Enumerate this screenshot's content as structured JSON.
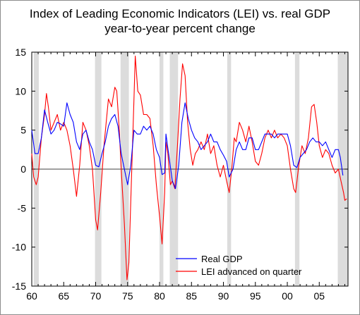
{
  "chart_data": {
    "type": "line",
    "title": "Index of Leading Economic Indicators (LEI) vs. real GDP",
    "subtitle": "year-to-year percent change",
    "xlabel": "",
    "ylabel": "",
    "xlim": [
      1960,
      2009.5
    ],
    "ylim": [
      -15,
      15
    ],
    "y_ticks": [
      15,
      10,
      5,
      0,
      -5,
      -10,
      -15
    ],
    "x_ticks": [
      {
        "year": 1960,
        "label": "60"
      },
      {
        "year": 1965,
        "label": "65"
      },
      {
        "year": 1970,
        "label": "70"
      },
      {
        "year": 1975,
        "label": "75"
      },
      {
        "year": 1980,
        "label": "80"
      },
      {
        "year": 1985,
        "label": "85"
      },
      {
        "year": 1990,
        "label": "90"
      },
      {
        "year": 1995,
        "label": "95"
      },
      {
        "year": 2000,
        "label": "00"
      },
      {
        "year": 2005,
        "label": "05"
      }
    ],
    "grid": false,
    "legend_position": "bottom-center",
    "recessions": [
      [
        1960.3,
        1961.1
      ],
      [
        1969.9,
        1970.9
      ],
      [
        1973.9,
        1975.2
      ],
      [
        1980.0,
        1980.6
      ],
      [
        1981.6,
        1982.9
      ],
      [
        1990.6,
        1991.2
      ],
      [
        2001.2,
        2001.9
      ],
      [
        2007.9,
        2009.5
      ]
    ],
    "series": [
      {
        "name": "Real GDP",
        "color": "#0000ff",
        "points": [
          [
            1960.0,
            5.0
          ],
          [
            1960.5,
            2.0
          ],
          [
            1961.0,
            2.0
          ],
          [
            1961.5,
            4.0
          ],
          [
            1962.0,
            7.6
          ],
          [
            1962.5,
            6.0
          ],
          [
            1963.0,
            4.5
          ],
          [
            1963.5,
            5.0
          ],
          [
            1964.0,
            6.0
          ],
          [
            1964.5,
            5.8
          ],
          [
            1965.0,
            5.5
          ],
          [
            1965.5,
            8.5
          ],
          [
            1966.0,
            7.0
          ],
          [
            1966.5,
            6.0
          ],
          [
            1967.0,
            3.5
          ],
          [
            1967.5,
            2.5
          ],
          [
            1968.0,
            4.5
          ],
          [
            1968.5,
            5.0
          ],
          [
            1969.0,
            3.5
          ],
          [
            1969.5,
            2.5
          ],
          [
            1970.0,
            0.5
          ],
          [
            1970.5,
            0.3
          ],
          [
            1971.0,
            2.0
          ],
          [
            1971.5,
            3.5
          ],
          [
            1972.0,
            5.5
          ],
          [
            1972.5,
            6.5
          ],
          [
            1973.0,
            7.0
          ],
          [
            1973.5,
            5.5
          ],
          [
            1974.0,
            2.0
          ],
          [
            1974.5,
            0.0
          ],
          [
            1975.0,
            -2.0
          ],
          [
            1975.5,
            0.5
          ],
          [
            1976.0,
            5.0
          ],
          [
            1976.5,
            4.5
          ],
          [
            1977.0,
            4.5
          ],
          [
            1977.5,
            5.5
          ],
          [
            1978.0,
            5.0
          ],
          [
            1978.5,
            5.5
          ],
          [
            1979.0,
            4.5
          ],
          [
            1979.5,
            2.5
          ],
          [
            1980.0,
            1.5
          ],
          [
            1980.4,
            -0.7
          ],
          [
            1980.8,
            -0.5
          ],
          [
            1981.0,
            4.5
          ],
          [
            1981.5,
            1.5
          ],
          [
            1982.0,
            -1.5
          ],
          [
            1982.5,
            -2.5
          ],
          [
            1983.0,
            0.5
          ],
          [
            1983.5,
            6.0
          ],
          [
            1984.0,
            8.5
          ],
          [
            1984.5,
            6.5
          ],
          [
            1985.0,
            5.0
          ],
          [
            1985.5,
            4.0
          ],
          [
            1986.0,
            3.5
          ],
          [
            1986.5,
            2.5
          ],
          [
            1987.0,
            3.0
          ],
          [
            1987.5,
            3.5
          ],
          [
            1988.0,
            4.5
          ],
          [
            1988.5,
            3.5
          ],
          [
            1989.0,
            3.5
          ],
          [
            1989.5,
            2.5
          ],
          [
            1990.0,
            1.8
          ],
          [
            1990.5,
            1.0
          ],
          [
            1990.9,
            -1.0
          ],
          [
            1991.5,
            0.0
          ],
          [
            1992.0,
            2.5
          ],
          [
            1992.5,
            3.5
          ],
          [
            1993.0,
            2.5
          ],
          [
            1993.5,
            2.5
          ],
          [
            1994.0,
            4.0
          ],
          [
            1994.5,
            4.0
          ],
          [
            1995.0,
            2.5
          ],
          [
            1995.5,
            2.5
          ],
          [
            1996.0,
            3.5
          ],
          [
            1996.5,
            4.5
          ],
          [
            1997.0,
            4.5
          ],
          [
            1997.5,
            4.5
          ],
          [
            1998.0,
            4.0
          ],
          [
            1998.5,
            4.5
          ],
          [
            1999.0,
            4.5
          ],
          [
            1999.5,
            4.5
          ],
          [
            2000.0,
            4.5
          ],
          [
            2000.5,
            3.0
          ],
          [
            2001.0,
            0.5
          ],
          [
            2001.5,
            0.2
          ],
          [
            2002.0,
            1.5
          ],
          [
            2002.5,
            2.0
          ],
          [
            2003.0,
            2.5
          ],
          [
            2003.5,
            3.5
          ],
          [
            2004.0,
            4.0
          ],
          [
            2004.5,
            3.5
          ],
          [
            2005.0,
            3.5
          ],
          [
            2005.5,
            3.0
          ],
          [
            2006.0,
            3.5
          ],
          [
            2006.5,
            2.5
          ],
          [
            2007.0,
            1.5
          ],
          [
            2007.5,
            2.5
          ],
          [
            2008.0,
            2.5
          ],
          [
            2008.3,
            1.5
          ],
          [
            2008.7,
            -0.8
          ]
        ]
      },
      {
        "name": "LEI advanced on quarter",
        "color": "#ff0000",
        "points": [
          [
            1960.0,
            2.0
          ],
          [
            1960.3,
            -1.0
          ],
          [
            1960.7,
            -2.0
          ],
          [
            1961.0,
            -1.0
          ],
          [
            1961.5,
            4.0
          ],
          [
            1962.0,
            7.0
          ],
          [
            1962.3,
            9.7
          ],
          [
            1962.6,
            8.0
          ],
          [
            1963.0,
            5.0
          ],
          [
            1963.5,
            6.0
          ],
          [
            1964.0,
            7.0
          ],
          [
            1964.5,
            5.0
          ],
          [
            1965.0,
            6.0
          ],
          [
            1965.5,
            5.0
          ],
          [
            1966.0,
            3.0
          ],
          [
            1966.5,
            0.0
          ],
          [
            1967.0,
            -3.5
          ],
          [
            1967.5,
            0.5
          ],
          [
            1968.0,
            6.0
          ],
          [
            1968.5,
            5.0
          ],
          [
            1969.0,
            3.0
          ],
          [
            1969.5,
            0.0
          ],
          [
            1970.0,
            -6.5
          ],
          [
            1970.3,
            -7.8
          ],
          [
            1970.8,
            -3.0
          ],
          [
            1971.3,
            3.0
          ],
          [
            1972.0,
            9.0
          ],
          [
            1972.5,
            8.0
          ],
          [
            1973.0,
            10.5
          ],
          [
            1973.3,
            10.0
          ],
          [
            1973.7,
            5.0
          ],
          [
            1974.0,
            0.0
          ],
          [
            1974.5,
            -7.0
          ],
          [
            1974.9,
            -14.2
          ],
          [
            1975.2,
            -12.0
          ],
          [
            1975.5,
            -4.0
          ],
          [
            1976.0,
            9.0
          ],
          [
            1976.2,
            14.5
          ],
          [
            1976.6,
            10.0
          ],
          [
            1977.0,
            9.5
          ],
          [
            1977.5,
            7.0
          ],
          [
            1978.0,
            7.0
          ],
          [
            1978.5,
            6.5
          ],
          [
            1979.0,
            3.0
          ],
          [
            1979.5,
            -2.0
          ],
          [
            1980.0,
            -6.0
          ],
          [
            1980.4,
            -9.6
          ],
          [
            1980.8,
            -3.0
          ],
          [
            1981.0,
            3.5
          ],
          [
            1981.3,
            2.0
          ],
          [
            1981.7,
            -2.0
          ],
          [
            1982.0,
            -1.5
          ],
          [
            1982.4,
            -2.5
          ],
          [
            1982.8,
            3.0
          ],
          [
            1983.2,
            9.0
          ],
          [
            1983.6,
            13.5
          ],
          [
            1984.0,
            12.0
          ],
          [
            1984.4,
            6.0
          ],
          [
            1984.8,
            2.5
          ],
          [
            1985.2,
            0.5
          ],
          [
            1985.6,
            2.0
          ],
          [
            1986.0,
            2.5
          ],
          [
            1986.5,
            3.5
          ],
          [
            1987.0,
            2.5
          ],
          [
            1987.5,
            4.5
          ],
          [
            1988.0,
            2.0
          ],
          [
            1988.5,
            3.0
          ],
          [
            1989.0,
            0.5
          ],
          [
            1989.5,
            -1.0
          ],
          [
            1990.0,
            0.5
          ],
          [
            1990.5,
            -1.5
          ],
          [
            1990.9,
            -3.0
          ],
          [
            1991.3,
            0.0
          ],
          [
            1991.7,
            4.0
          ],
          [
            1992.0,
            3.5
          ],
          [
            1992.5,
            6.0
          ],
          [
            1993.0,
            5.0
          ],
          [
            1993.5,
            3.5
          ],
          [
            1994.0,
            5.5
          ],
          [
            1994.5,
            3.5
          ],
          [
            1995.0,
            1.0
          ],
          [
            1995.5,
            0.5
          ],
          [
            1996.0,
            2.0
          ],
          [
            1996.5,
            4.0
          ],
          [
            1997.0,
            5.0
          ],
          [
            1997.5,
            4.0
          ],
          [
            1998.0,
            5.0
          ],
          [
            1998.5,
            4.0
          ],
          [
            1999.0,
            4.5
          ],
          [
            1999.5,
            4.0
          ],
          [
            2000.0,
            3.0
          ],
          [
            2000.5,
            0.0
          ],
          [
            2001.0,
            -2.5
          ],
          [
            2001.3,
            -3.0
          ],
          [
            2001.8,
            0.5
          ],
          [
            2002.3,
            3.0
          ],
          [
            2002.8,
            2.0
          ],
          [
            2003.3,
            4.0
          ],
          [
            2003.8,
            8.0
          ],
          [
            2004.2,
            8.3
          ],
          [
            2004.6,
            6.0
          ],
          [
            2005.0,
            3.0
          ],
          [
            2005.5,
            1.5
          ],
          [
            2006.0,
            2.5
          ],
          [
            2006.5,
            2.0
          ],
          [
            2007.0,
            0.5
          ],
          [
            2007.5,
            -0.5
          ],
          [
            2008.0,
            0.0
          ],
          [
            2008.4,
            -1.5
          ],
          [
            2008.8,
            -3.0
          ],
          [
            2009.0,
            -4.0
          ],
          [
            2009.3,
            -3.8
          ]
        ]
      }
    ]
  }
}
